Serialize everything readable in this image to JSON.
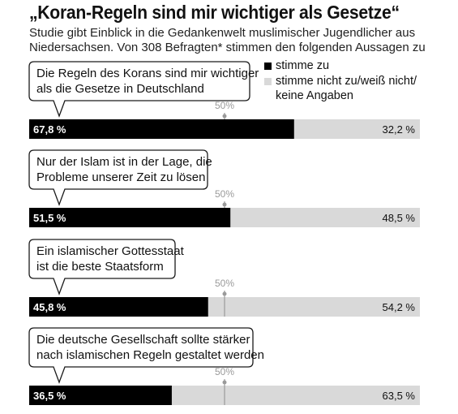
{
  "header": {
    "title": "„Koran-Regeln sind mir wichtiger als Gesetze“",
    "subtitle": "Studie gibt Einblick in die Gedankenwelt muslimischer Jugendlicher aus Niedersachsen. Von 308 Befragten* stimmen den folgenden Aussagen zu"
  },
  "colors": {
    "agree": "#000000",
    "disagree": "#d9d9d9",
    "reference": "#9a9a9a"
  },
  "chart_data": {
    "type": "bar",
    "orientation": "horizontal",
    "stacked": true,
    "xlim": [
      0,
      100
    ],
    "reference_line": {
      "value": 50,
      "label": "50%"
    },
    "legend": {
      "placement": "top-right",
      "entries": [
        "stimme zu",
        "stimme nicht zu/weiß nicht/ keine Angaben"
      ]
    },
    "categories": [
      [
        "Die Regeln des Korans sind mir wichtiger",
        "als die Gesetze in Deutschland"
      ],
      [
        "Nur der Islam ist in der Lage, die",
        "Probleme unserer Zeit zu lösen"
      ],
      [
        "Ein islamischer Gottesstaat",
        "ist die beste Staatsform"
      ],
      [
        "Die deutsche Gesellschaft sollte stärker",
        "nach islamischen Regeln gestaltet werden"
      ]
    ],
    "series": [
      {
        "name": "stimme zu",
        "values": [
          67.8,
          51.5,
          45.8,
          36.5
        ],
        "labels": [
          "67,8 %",
          "51,5 %",
          "45,8 %",
          "36,5 %"
        ]
      },
      {
        "name": "stimme nicht zu/weiß nicht/ keine Angaben",
        "values": [
          32.2,
          48.5,
          54.2,
          63.5
        ],
        "labels": [
          "32,2 %",
          "48,5 %",
          "54,2 %",
          "63,5 %"
        ]
      }
    ]
  }
}
